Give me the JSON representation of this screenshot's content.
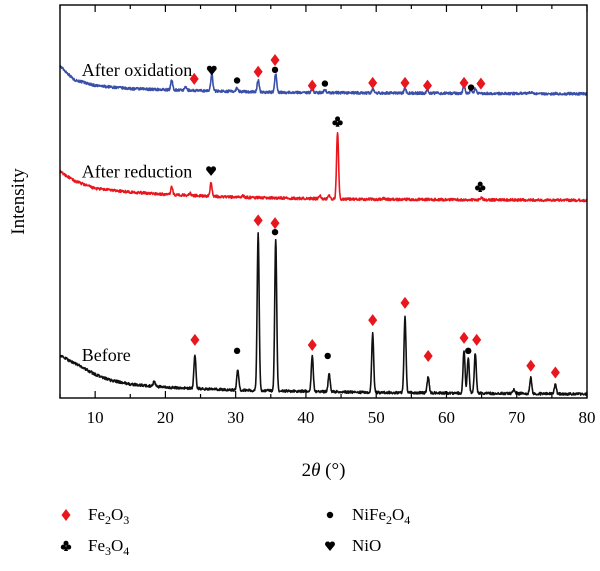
{
  "chart_data": {
    "type": "line",
    "title": "",
    "xlabel_symbol": "2θ",
    "xlabel_unit": "(°)",
    "ylabel": "Intensity",
    "xlim": [
      5,
      80
    ],
    "xticks": [
      10,
      20,
      30,
      40,
      50,
      60,
      70,
      80
    ],
    "y_tick_labels": false,
    "grid": false,
    "legend_position": "bottom",
    "legend": [
      {
        "marker": "diamond",
        "color": "#e8161d",
        "text": [
          "Fe",
          "2",
          "O",
          "3"
        ]
      },
      {
        "marker": "circle",
        "color": "#000000",
        "text": [
          "NiFe",
          "2",
          "O",
          "4"
        ]
      },
      {
        "marker": "club",
        "color": "#000000",
        "text": [
          "Fe",
          "3",
          "O",
          "4"
        ]
      },
      {
        "marker": "heart",
        "color": "#000000",
        "text": [
          "NiO"
        ]
      }
    ],
    "series": [
      {
        "name": "After oxidation",
        "color": "#3a4fa7",
        "offset": 0.78,
        "baseline": [
          [
            5,
            0.065
          ],
          [
            7,
            0.03
          ],
          [
            10,
            0.015
          ],
          [
            15,
            0.007
          ],
          [
            25,
            0.002
          ],
          [
            35,
            -0.002
          ],
          [
            50,
            -0.004
          ],
          [
            80,
            -0.006
          ]
        ],
        "peaks": [
          {
            "x": 20.9,
            "h": 0.025
          },
          {
            "x": 22.9,
            "h": 0.008
          },
          {
            "x": 26.6,
            "h": 0.045
          },
          {
            "x": 30.2,
            "h": 0.01
          },
          {
            "x": 33.2,
            "h": 0.03
          },
          {
            "x": 35.7,
            "h": 0.048
          },
          {
            "x": 40.9,
            "h": 0.01
          },
          {
            "x": 42.7,
            "h": 0.008
          },
          {
            "x": 49.5,
            "h": 0.01
          },
          {
            "x": 54.1,
            "h": 0.012
          },
          {
            "x": 57.3,
            "h": 0.008
          },
          {
            "x": 62.5,
            "h": 0.022
          },
          {
            "x": 63.5,
            "h": 0.01
          },
          {
            "x": 64.1,
            "h": 0.012
          },
          {
            "x": 72.0,
            "h": 0.004
          }
        ],
        "markers": [
          {
            "x": 24.1,
            "y": 0.812,
            "symbol": "diamond"
          },
          {
            "x": 26.6,
            "y": 0.834,
            "symbol": "heart"
          },
          {
            "x": 30.2,
            "y": 0.808,
            "symbol": "circle"
          },
          {
            "x": 33.2,
            "y": 0.83,
            "symbol": "diamond"
          },
          {
            "x": 35.6,
            "y": 0.86,
            "symbol": "diamond"
          },
          {
            "x": 35.6,
            "y": 0.835,
            "symbol": "circle"
          },
          {
            "x": 40.9,
            "y": 0.795,
            "symbol": "diamond"
          },
          {
            "x": 42.7,
            "y": 0.8,
            "symbol": "circle"
          },
          {
            "x": 49.5,
            "y": 0.802,
            "symbol": "diamond"
          },
          {
            "x": 54.1,
            "y": 0.802,
            "symbol": "diamond"
          },
          {
            "x": 57.3,
            "y": 0.795,
            "symbol": "diamond"
          },
          {
            "x": 62.5,
            "y": 0.802,
            "symbol": "diamond"
          },
          {
            "x": 63.5,
            "y": 0.79,
            "symbol": "circle"
          },
          {
            "x": 64.9,
            "y": 0.8,
            "symbol": "diamond"
          }
        ]
      },
      {
        "name": "After reduction",
        "color": "#e8161d",
        "offset": 0.508,
        "baseline": [
          [
            5,
            0.068
          ],
          [
            7,
            0.045
          ],
          [
            10,
            0.025
          ],
          [
            15,
            0.016
          ],
          [
            20,
            0.01
          ],
          [
            30,
            0.003
          ],
          [
            45,
            -0.002
          ],
          [
            80,
            -0.005
          ]
        ],
        "peaks": [
          {
            "x": 20.9,
            "h": 0.02
          },
          {
            "x": 23.5,
            "h": 0.006
          },
          {
            "x": 26.5,
            "h": 0.035
          },
          {
            "x": 31.0,
            "h": 0.005
          },
          {
            "x": 42.0,
            "h": 0.008
          },
          {
            "x": 43.3,
            "h": 0.009
          },
          {
            "x": 44.5,
            "h": 0.17
          },
          {
            "x": 51.0,
            "h": 0.003
          },
          {
            "x": 65.0,
            "h": 0.006
          }
        ],
        "markers": [
          {
            "x": 26.5,
            "y": 0.578,
            "symbol": "heart"
          },
          {
            "x": 44.5,
            "y": 0.703,
            "symbol": "club"
          },
          {
            "x": 64.8,
            "y": 0.537,
            "symbol": "club"
          }
        ]
      },
      {
        "name": "Before",
        "color": "#111111",
        "offset": 0.01,
        "baseline": [
          [
            5,
            0.098
          ],
          [
            8,
            0.07
          ],
          [
            10,
            0.05
          ],
          [
            12,
            0.036
          ],
          [
            15,
            0.025
          ],
          [
            20,
            0.017
          ],
          [
            30,
            0.01
          ],
          [
            50,
            0.004
          ],
          [
            80,
            0.0
          ]
        ],
        "peaks": [
          {
            "x": 18.4,
            "h": 0.013
          },
          {
            "x": 24.2,
            "h": 0.085
          },
          {
            "x": 30.3,
            "h": 0.053
          },
          {
            "x": 33.2,
            "h": 0.4
          },
          {
            "x": 35.7,
            "h": 0.385
          },
          {
            "x": 40.9,
            "h": 0.092
          },
          {
            "x": 43.3,
            "h": 0.045
          },
          {
            "x": 49.5,
            "h": 0.15
          },
          {
            "x": 54.1,
            "h": 0.195
          },
          {
            "x": 57.4,
            "h": 0.042
          },
          {
            "x": 62.5,
            "h": 0.11
          },
          {
            "x": 63.1,
            "h": 0.092
          },
          {
            "x": 64.1,
            "h": 0.103
          },
          {
            "x": 69.6,
            "h": 0.011
          },
          {
            "x": 72.0,
            "h": 0.042
          },
          {
            "x": 75.5,
            "h": 0.026
          }
        ],
        "markers": [
          {
            "x": 24.2,
            "y": 0.148,
            "symbol": "diamond"
          },
          {
            "x": 30.2,
            "y": 0.12,
            "symbol": "circle"
          },
          {
            "x": 33.2,
            "y": 0.452,
            "symbol": "diamond"
          },
          {
            "x": 35.6,
            "y": 0.445,
            "symbol": "diamond"
          },
          {
            "x": 35.6,
            "y": 0.422,
            "symbol": "circle"
          },
          {
            "x": 40.9,
            "y": 0.135,
            "symbol": "diamond"
          },
          {
            "x": 43.1,
            "y": 0.107,
            "symbol": "circle"
          },
          {
            "x": 49.5,
            "y": 0.198,
            "symbol": "diamond"
          },
          {
            "x": 54.1,
            "y": 0.242,
            "symbol": "diamond"
          },
          {
            "x": 57.4,
            "y": 0.107,
            "symbol": "diamond"
          },
          {
            "x": 62.5,
            "y": 0.153,
            "symbol": "diamond"
          },
          {
            "x": 63.1,
            "y": 0.12,
            "symbol": "circle"
          },
          {
            "x": 64.3,
            "y": 0.148,
            "symbol": "diamond"
          },
          {
            "x": 72.0,
            "y": 0.082,
            "symbol": "diamond"
          },
          {
            "x": 75.5,
            "y": 0.065,
            "symbol": "diamond"
          }
        ]
      }
    ]
  }
}
